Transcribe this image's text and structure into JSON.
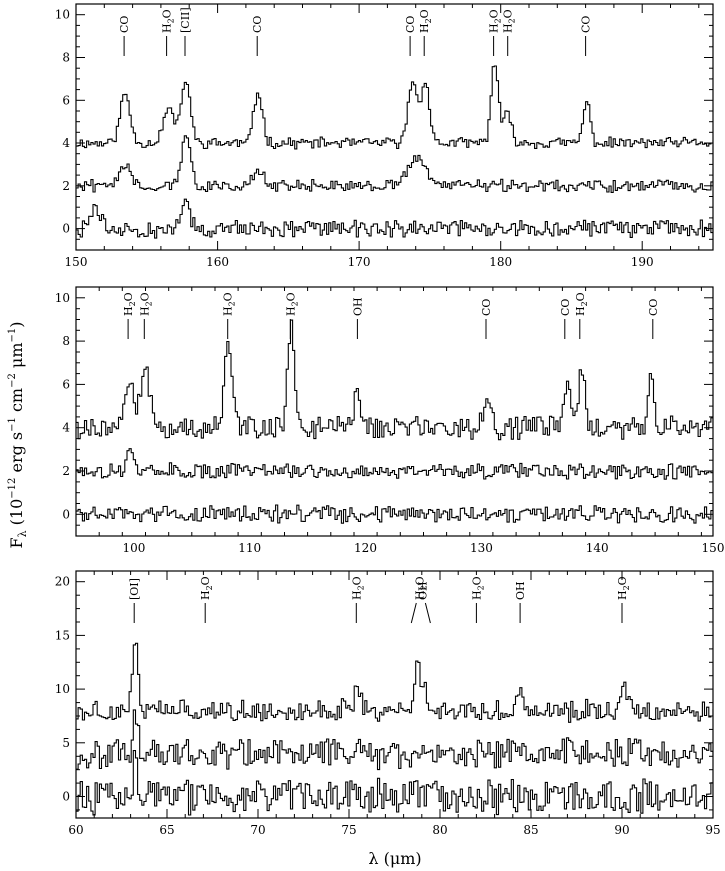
{
  "figure": {
    "ylabel": "F_λ (10^-12 erg s^-1 cm^-2 μm^-1)",
    "ylabel_parts": {
      "main": "F",
      "sub": "λ",
      "open": " (10",
      "exp1": "−12",
      "mid1": " erg s",
      "exp2": "−1",
      "mid2": " cm",
      "exp3": "−2",
      "mid3": " μm",
      "exp4": "−1",
      "close": ")"
    },
    "xlabel": "λ (μm)"
  },
  "chart_data": [
    {
      "type": "line",
      "xlim": [
        150,
        195
      ],
      "ylim": [
        -1,
        10.5
      ],
      "xticks_major": [
        150,
        160,
        170,
        180,
        190
      ],
      "yticks_major": [
        0,
        2,
        4,
        6,
        8,
        10
      ],
      "xtick_labels": [
        "150",
        "160",
        "170",
        "180",
        "190"
      ],
      "ytick_labels": [
        "0",
        "2",
        "4",
        "6",
        "8",
        "10"
      ],
      "series": [
        {
          "offset": 4,
          "noise": 0.22,
          "peaks": [
            [
              153.4,
              2.3,
              0.35
            ],
            [
              156.5,
              1.6,
              0.4
            ],
            [
              157.7,
              3.0,
              0.3
            ],
            [
              162.8,
              2.4,
              0.3
            ],
            [
              173.7,
              3.0,
              0.3
            ],
            [
              174.6,
              3.0,
              0.28
            ],
            [
              179.5,
              3.8,
              0.25
            ],
            [
              180.4,
              1.3,
              0.3
            ],
            [
              186.0,
              1.9,
              0.25
            ]
          ]
        },
        {
          "offset": 2,
          "noise": 0.25,
          "peaks": [
            [
              153.4,
              1.1,
              0.4
            ],
            [
              157.7,
              2.5,
              0.3
            ],
            [
              162.8,
              0.6,
              0.4
            ],
            [
              174.0,
              1.4,
              0.6
            ]
          ]
        },
        {
          "offset": 0,
          "noise": 0.35,
          "peaks": [
            [
              151.3,
              1.0,
              0.3
            ],
            [
              157.7,
              1.3,
              0.3
            ]
          ]
        }
      ],
      "lines": [
        {
          "x": 153.4,
          "label": "CO",
          "sub": ""
        },
        {
          "x": 156.4,
          "label": "H",
          "sub": "2",
          "after": "O"
        },
        {
          "x": 157.7,
          "label": "[CII]",
          "sub": ""
        },
        {
          "x": 162.8,
          "label": "CO",
          "sub": ""
        },
        {
          "x": 173.6,
          "label": "CO",
          "sub": ""
        },
        {
          "x": 174.6,
          "label": "H",
          "sub": "2",
          "after": "O"
        },
        {
          "x": 179.5,
          "label": "H",
          "sub": "2",
          "after": "O"
        },
        {
          "x": 180.5,
          "label": "H",
          "sub": "2",
          "after": "O"
        },
        {
          "x": 186.0,
          "label": "CO",
          "sub": ""
        }
      ]
    },
    {
      "type": "line",
      "xlim": [
        95,
        150
      ],
      "ylim": [
        -1,
        10.5
      ],
      "xticks_major": [
        100,
        110,
        120,
        130,
        140,
        150
      ],
      "yticks_major": [
        0,
        2,
        4,
        6,
        8,
        10
      ],
      "xtick_labels": [
        "100",
        "110",
        "120",
        "130",
        "140",
        "150"
      ],
      "ytick_labels": [
        "0",
        "2",
        "4",
        "6",
        "8",
        "10"
      ],
      "series": [
        {
          "offset": 4,
          "noise": 0.45,
          "peaks": [
            [
              99.5,
              2.0,
              0.4
            ],
            [
              100.9,
              2.5,
              0.4
            ],
            [
              108.1,
              3.7,
              0.35
            ],
            [
              113.5,
              4.7,
              0.3
            ],
            [
              119.2,
              1.5,
              0.3
            ],
            [
              130.4,
              1.5,
              0.3
            ],
            [
              137.3,
              2.0,
              0.3
            ],
            [
              138.6,
              2.5,
              0.3
            ],
            [
              144.6,
              2.2,
              0.25
            ]
          ]
        },
        {
          "offset": 2,
          "noise": 0.3,
          "peaks": [
            [
              99.5,
              1.0,
              0.3
            ]
          ]
        },
        {
          "offset": 0,
          "noise": 0.35,
          "peaks": []
        }
      ],
      "lines": [
        {
          "x": 99.5,
          "label": "H",
          "sub": "2",
          "after": "O"
        },
        {
          "x": 100.9,
          "label": "H",
          "sub": "2",
          "after": "O"
        },
        {
          "x": 108.1,
          "label": "H",
          "sub": "2",
          "after": "O"
        },
        {
          "x": 113.5,
          "label": "H",
          "sub": "2",
          "after": "O"
        },
        {
          "x": 119.3,
          "label": "OH",
          "sub": ""
        },
        {
          "x": 130.4,
          "label": "CO",
          "sub": ""
        },
        {
          "x": 137.2,
          "label": "CO",
          "sub": ""
        },
        {
          "x": 138.5,
          "label": "H",
          "sub": "2",
          "after": "O"
        },
        {
          "x": 144.8,
          "label": "CO",
          "sub": ""
        }
      ]
    },
    {
      "type": "line",
      "xlim": [
        60,
        95
      ],
      "ylim": [
        -2,
        21
      ],
      "xticks_major": [
        60,
        65,
        70,
        75,
        80,
        85,
        90,
        95
      ],
      "yticks_major": [
        0,
        5,
        10,
        15,
        20
      ],
      "xtick_labels": [
        "60",
        "65",
        "70",
        "75",
        "80",
        "85",
        "90",
        "95"
      ],
      "ytick_labels": [
        "0",
        "5",
        "10",
        "15",
        "20"
      ],
      "series": [
        {
          "offset": 8,
          "noise": 0.9,
          "peaks": [
            [
              63.2,
              7.0,
              0.15
            ],
            [
              75.4,
              3.0,
              0.15
            ],
            [
              78.7,
              5.0,
              0.15
            ],
            [
              79.1,
              2.0,
              0.15
            ],
            [
              84.4,
              1.5,
              0.2
            ],
            [
              90.0,
              2.5,
              0.2
            ]
          ]
        },
        {
          "offset": 4,
          "noise": 1.2,
          "peaks": [
            [
              63.2,
              4.0,
              0.15
            ]
          ]
        },
        {
          "offset": 0,
          "noise": 1.4,
          "peaks": [
            [
              63.2,
              3.0,
              0.15
            ]
          ]
        }
      ],
      "lines": [
        {
          "x": 63.2,
          "label": "[OI]",
          "sub": ""
        },
        {
          "x": 67.1,
          "label": "H",
          "sub": "2",
          "after": "O"
        },
        {
          "x": 75.4,
          "label": "H",
          "sub": "2",
          "after": "O"
        },
        {
          "x": 78.7,
          "label": "H",
          "sub": "2",
          "after": "O",
          "slant": -1
        },
        {
          "x": 79.2,
          "label": "OH",
          "sub": "",
          "slant": 1
        },
        {
          "x": 82.0,
          "label": "H",
          "sub": "2",
          "after": "O"
        },
        {
          "x": 84.4,
          "label": "OH",
          "sub": ""
        },
        {
          "x": 90.0,
          "label": "H",
          "sub": "2",
          "after": "O"
        }
      ]
    }
  ]
}
